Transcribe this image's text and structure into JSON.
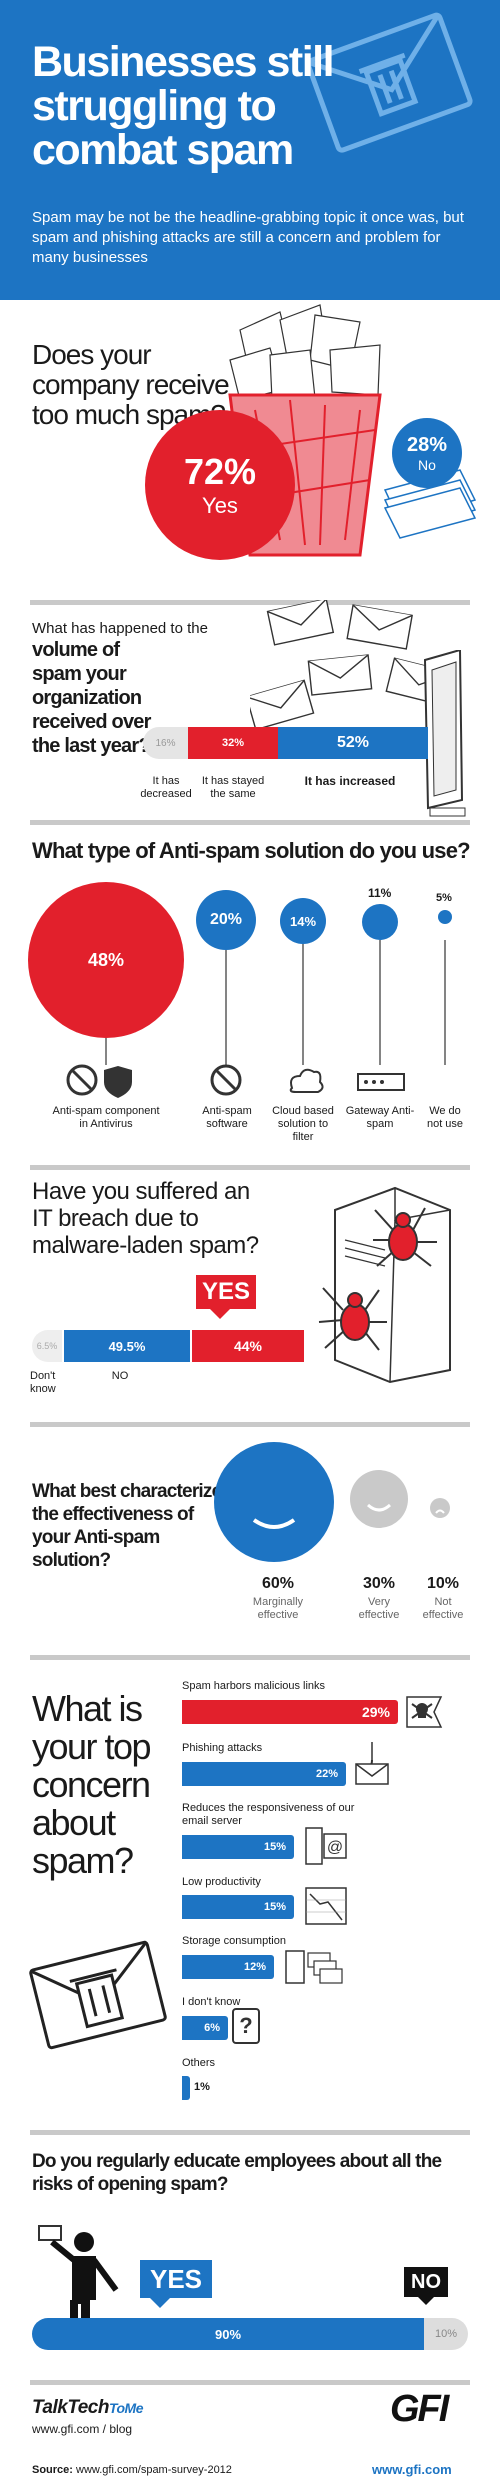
{
  "header": {
    "title": "Businesses still struggling to combat spam",
    "subtitle": "Spam may be not be the headline-grabbing topic it once was, but spam and phishing attacks are still a concern and problem for many businesses"
  },
  "q1": {
    "question": "Does your company receive too much spam?",
    "yes_pct": "72%",
    "yes_label": "Yes",
    "no_pct": "28%",
    "no_label": "No"
  },
  "q2": {
    "question_a": "What has happened to the",
    "question_b": "volume of spam your organization received over the last year?",
    "decreased_pct": "16%",
    "decreased_label": "It has decreased",
    "same_pct": "32%",
    "same_label": "It has stayed the same",
    "increased_pct": "52%",
    "increased_label": "It has increased"
  },
  "q3": {
    "question": "What type of Anti-spam solution do you use?",
    "items": [
      {
        "pct": "48%",
        "label": "Anti-spam component in Antivirus"
      },
      {
        "pct": "20%",
        "label": "Anti-spam software"
      },
      {
        "pct": "14%",
        "label": "Cloud based solution to filter"
      },
      {
        "pct": "11%",
        "label": "Gateway Anti-spam"
      },
      {
        "pct": "5%",
        "label": "We do not use"
      }
    ]
  },
  "q4": {
    "question": "Have you suffered an IT breach due to malware-laden spam?",
    "yes_badge": "YES",
    "dont_know_pct": "6.5%",
    "dont_know_label": "Don't know",
    "no_pct": "49.5%",
    "no_label": "NO",
    "yes_pct": "44%"
  },
  "q5": {
    "question": "What best characterizes the effectiveness of your Anti-spam solution?",
    "items": [
      {
        "pct": "60%",
        "label": "Marginally effective"
      },
      {
        "pct": "30%",
        "label": "Very effective"
      },
      {
        "pct": "10%",
        "label": "Not effective"
      }
    ]
  },
  "q6": {
    "question": "What is your top concern about spam?",
    "items": [
      {
        "label": "Spam harbors malicious links",
        "pct": "29%"
      },
      {
        "label": "Phishing attacks",
        "pct": "22%"
      },
      {
        "label": "Reduces the responsiveness of our email server",
        "pct": "15%"
      },
      {
        "label": "Low productivity",
        "pct": "15%"
      },
      {
        "label": "Storage consumption",
        "pct": "12%"
      },
      {
        "label": "I don't know",
        "pct": "6%"
      },
      {
        "label": "Others",
        "pct": "1%"
      }
    ]
  },
  "q7": {
    "question": "Do you regularly educate employees about all the risks of opening spam?",
    "yes_badge": "YES",
    "yes_pct": "90%",
    "no_badge": "NO",
    "no_pct": "10%"
  },
  "footer": {
    "brand_a": "TalkTech",
    "brand_b": "ToMe",
    "blog_url": "www.gfi.com / blog",
    "logo": "GFI",
    "source_label": "Source:",
    "source_url": "www.gfi.com/spam-survey-2012",
    "site_url": "www.gfi.com"
  },
  "colors": {
    "blue": "#1d74c3",
    "red": "#e2202c",
    "grey": "#c9c9c9"
  }
}
